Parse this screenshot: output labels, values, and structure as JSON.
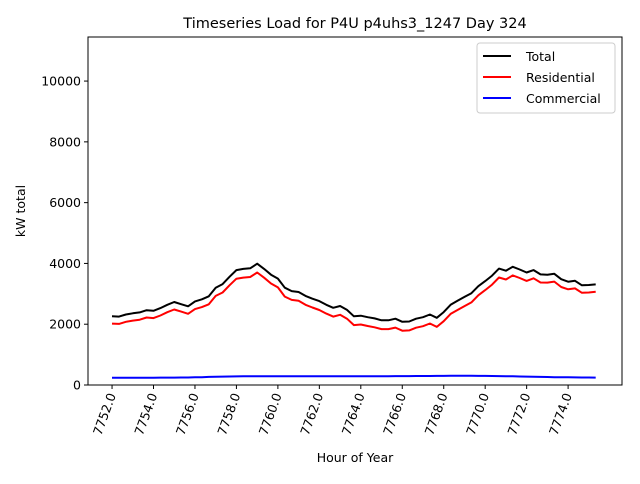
{
  "chart_data": {
    "type": "line",
    "title": "Timeseries Load for P4U p4uhs3_1247  Day 324",
    "xlabel": "Hour of Year",
    "ylabel": "kW total",
    "xlim": [
      7750.84,
      7776.6
    ],
    "ylim": [
      0,
      11450
    ],
    "xticks": [
      7752,
      7754,
      7756,
      7758,
      7760,
      7762,
      7764,
      7766,
      7768,
      7770,
      7772,
      7774
    ],
    "xtick_labels": [
      "7752.0",
      "7754.0",
      "7756.0",
      "7758.0",
      "7760.0",
      "7762.0",
      "7764.0",
      "7766.0",
      "7768.0",
      "7770.0",
      "7772.0",
      "7774.0"
    ],
    "yticks": [
      0,
      2000,
      4000,
      6000,
      8000,
      10000
    ],
    "ytick_labels": [
      "0",
      "2000",
      "4000",
      "6000",
      "8000",
      "10000"
    ],
    "grid": false,
    "legend_position": "top-right",
    "x_start": 7752,
    "x_step": 0.3333333,
    "series": [
      {
        "name": "Total",
        "color": "#000000",
        "values": [
          2260,
          2250,
          2320,
          2360,
          2390,
          2460,
          2440,
          2530,
          2640,
          2730,
          2660,
          2590,
          2750,
          2820,
          2920,
          3200,
          3320,
          3560,
          3780,
          3820,
          3840,
          3990,
          3820,
          3630,
          3500,
          3200,
          3090,
          3060,
          2930,
          2840,
          2760,
          2640,
          2540,
          2600,
          2470,
          2260,
          2280,
          2230,
          2190,
          2130,
          2130,
          2180,
          2080,
          2090,
          2180,
          2230,
          2320,
          2210,
          2400,
          2640,
          2770,
          2900,
          3020,
          3250,
          3420,
          3600,
          3830,
          3760,
          3890,
          3800,
          3700,
          3780,
          3640,
          3630,
          3660,
          3480,
          3400,
          3430,
          3280,
          3290,
          3310
        ]
      },
      {
        "name": "Residential",
        "color": "#ff0000",
        "values": [
          2020,
          2010,
          2080,
          2120,
          2150,
          2220,
          2200,
          2288,
          2396,
          2485,
          2414,
          2342,
          2498,
          2562,
          2655,
          2930,
          3045,
          3280,
          3498,
          3535,
          3553,
          3702,
          3531,
          3340,
          3210,
          2910,
          2800,
          2770,
          2640,
          2550,
          2469,
          2349,
          2249,
          2309,
          2180,
          1970,
          1990,
          1940,
          1900,
          1840,
          1839,
          1888,
          1787,
          1796,
          1885,
          1934,
          2023,
          1912,
          2100,
          2338,
          2467,
          2597,
          2718,
          2950,
          3122,
          3304,
          3537,
          3470,
          3605,
          3520,
          3425,
          3510,
          3374,
          3368,
          3402,
          3225,
          3148,
          3180,
          3032,
          3044,
          3065
        ]
      },
      {
        "name": "Commercial",
        "color": "#0000ff",
        "values": [
          240,
          240,
          240,
          240,
          240,
          240,
          240,
          242,
          244,
          245,
          246,
          248,
          252,
          258,
          265,
          270,
          275,
          280,
          282,
          285,
          287,
          288,
          289,
          290,
          290,
          290,
          290,
          290,
          290,
          290,
          291,
          291,
          291,
          291,
          290,
          290,
          290,
          290,
          290,
          290,
          291,
          292,
          293,
          294,
          295,
          296,
          297,
          298,
          300,
          302,
          303,
          303,
          302,
          300,
          298,
          296,
          293,
          290,
          285,
          280,
          275,
          270,
          266,
          262,
          258,
          255,
          252,
          250,
          248,
          246,
          245
        ]
      }
    ]
  }
}
